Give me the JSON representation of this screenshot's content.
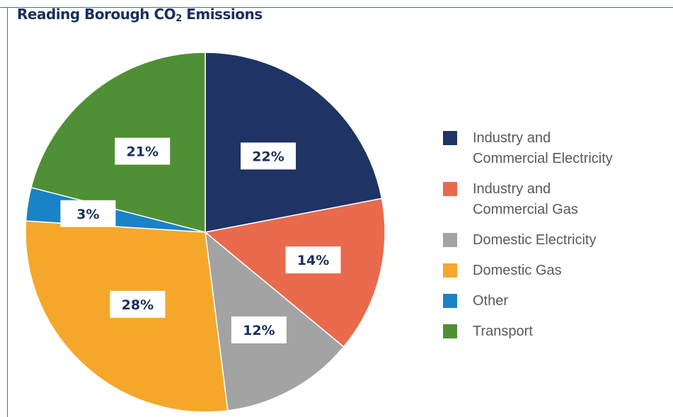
{
  "chart_data": {
    "type": "pie",
    "title_main": "Reading Borough CO",
    "title_sub": "2",
    "title_tail": " Emissions",
    "categories": [
      "Industry and Commercial Electricity",
      "Industry and Commercial Gas",
      "Domestic Electricity",
      "Domestic Gas",
      "Other",
      "Transport"
    ],
    "legend_lines": [
      [
        "Industry and",
        "Commercial Electricity"
      ],
      [
        "Industry and",
        "Commercial Gas"
      ],
      [
        "Domestic Electricity"
      ],
      [
        "Domestic Gas"
      ],
      [
        "Other"
      ],
      [
        "Transport"
      ]
    ],
    "values": [
      22,
      14,
      12,
      28,
      3,
      21
    ],
    "labels": [
      "22%",
      "14%",
      "12%",
      "28%",
      "3%",
      "21%"
    ],
    "colors": [
      "#1f3464",
      "#e96a4d",
      "#a3a3a4",
      "#f5a72b",
      "#1a82c6",
      "#4f8f35"
    ],
    "start_angle_deg": 0,
    "direction": "clockwise",
    "legend_position": "right"
  }
}
